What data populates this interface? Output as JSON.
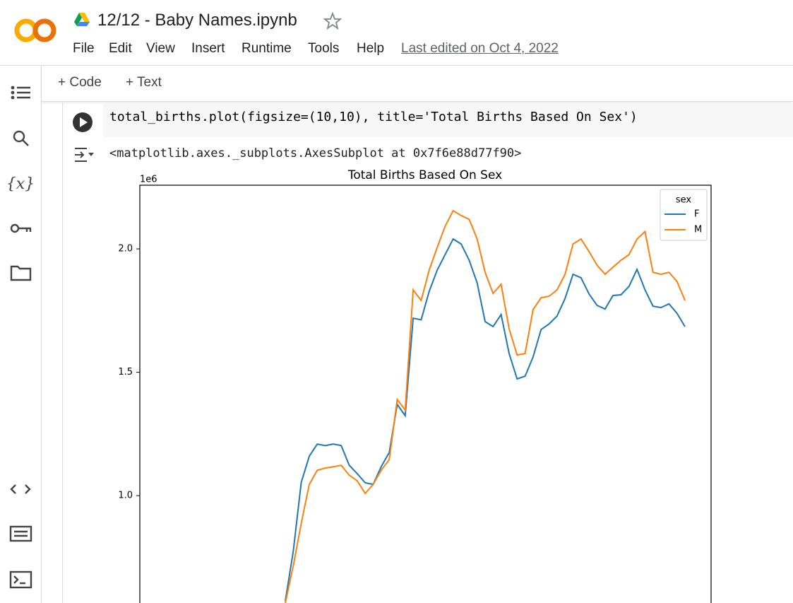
{
  "header": {
    "title": "12/12 - Baby Names.ipynb",
    "menu": [
      "File",
      "Edit",
      "View",
      "Insert",
      "Runtime",
      "Tools",
      "Help"
    ],
    "last_edited": "Last edited on Oct 4, 2022"
  },
  "toolbar": [
    "Code",
    "Text"
  ],
  "cell": {
    "code": "total_births.plot(figsize=(10,10), title='Total Births Based On Sex')",
    "output": "<matplotlib.axes._subplots.AxesSubplot at 0x7f6e88d77f90>"
  },
  "chart_data": {
    "type": "line",
    "title": "Total Births Based On Sex",
    "y_offset_label": "1e6",
    "ylim": [
      0.565,
      2.258
    ],
    "yticks": [
      {
        "value": 1,
        "label": "1.0"
      },
      {
        "value": 1.5,
        "label": "1.5"
      },
      {
        "value": 2,
        "label": "2.0"
      }
    ],
    "legend_title": "sex",
    "legend": "upper right",
    "series": [
      {
        "name": "F",
        "color": "#1f77b4",
        "values": [
          0.573,
          0.774,
          1.054,
          1.16,
          1.209,
          1.203,
          1.209,
          1.203,
          1.123,
          1.089,
          1.052,
          1.046,
          1.117,
          1.175,
          1.37,
          1.324,
          1.719,
          1.713,
          1.828,
          1.914,
          1.977,
          2.04,
          2.02,
          1.954,
          1.862,
          1.705,
          1.685,
          1.734,
          1.576,
          1.473,
          1.484,
          1.562,
          1.673,
          1.696,
          1.728,
          1.799,
          1.897,
          1.883,
          1.817,
          1.771,
          1.756,
          1.811,
          1.814,
          1.848,
          1.917,
          1.834,
          1.768,
          1.762,
          1.777,
          1.739,
          1.685
        ]
      },
      {
        "name": "M",
        "color": "#ff7f0e",
        "values": [
          0.565,
          0.716,
          0.888,
          1.046,
          1.103,
          1.112,
          1.117,
          1.123,
          1.083,
          1.06,
          1.009,
          1.046,
          1.103,
          1.146,
          1.39,
          1.347,
          1.834,
          1.791,
          1.914,
          2.006,
          2.092,
          2.155,
          2.135,
          2.12,
          2.04,
          1.905,
          1.819,
          1.857,
          1.676,
          1.57,
          1.576,
          1.754,
          1.802,
          1.808,
          1.834,
          1.897,
          2.02,
          2.04,
          1.989,
          1.934,
          1.897,
          1.926,
          1.954,
          1.977,
          2.04,
          2.07,
          1.905,
          1.897,
          1.905,
          1.868,
          1.791
        ]
      }
    ]
  }
}
